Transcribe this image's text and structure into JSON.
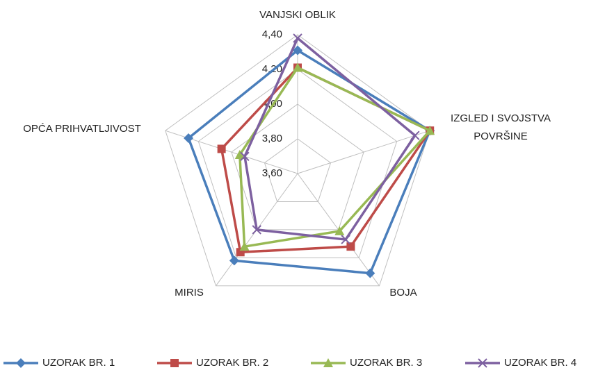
{
  "chart_data": {
    "type": "radar",
    "categories": [
      "VANJSKI OBLIK",
      "IZGLED I SVOJSTVA POVRŠINE",
      "BOJA",
      "MIRIS",
      "OPĆA PRIHVATLJIVOST"
    ],
    "series": [
      {
        "name": "UZORAK BR. 1",
        "color": "#4a7ebb",
        "marker": "diamond",
        "values": [
          4.31,
          4.4,
          4.31,
          4.22,
          4.26
        ]
      },
      {
        "name": "UZORAK BR. 2",
        "color": "#be4b48",
        "marker": "square",
        "values": [
          4.21,
          4.4,
          4.12,
          4.16,
          4.06
        ]
      },
      {
        "name": "UZORAK BR. 3",
        "color": "#98b954",
        "marker": "triangle",
        "values": [
          4.21,
          4.4,
          4.01,
          4.12,
          3.95
        ]
      },
      {
        "name": "UZORAK BR. 4",
        "color": "#7d60a0",
        "marker": "x",
        "values": [
          4.38,
          4.31,
          4.07,
          4.0,
          3.92
        ]
      }
    ],
    "ylim": [
      3.6,
      4.4
    ],
    "yticks": [
      {
        "value": 3.6,
        "label": "3,60"
      },
      {
        "value": 3.8,
        "label": "3,80"
      },
      {
        "value": 4.0,
        "label": "4,00"
      },
      {
        "value": 4.2,
        "label": "4,20"
      },
      {
        "value": 4.4,
        "label": "4,40"
      }
    ],
    "grid": true,
    "legend": "bottom"
  }
}
